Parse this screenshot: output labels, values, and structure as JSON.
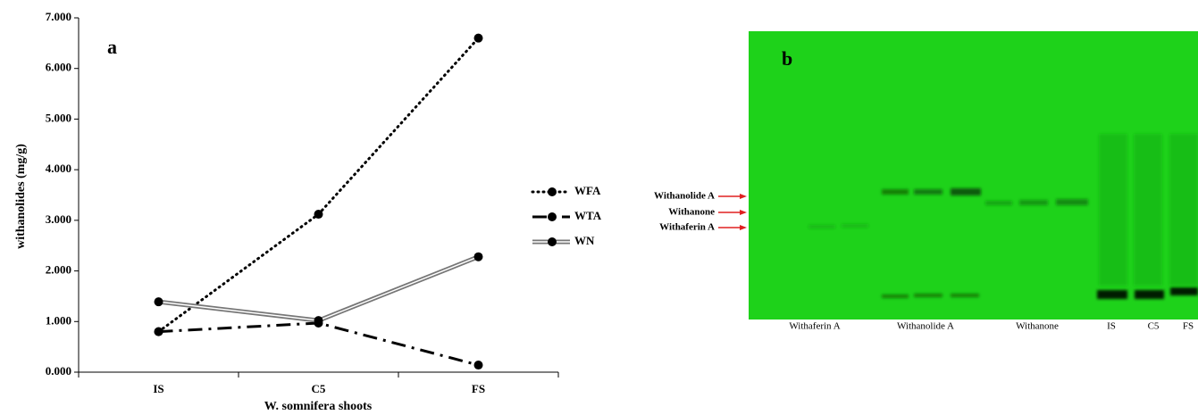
{
  "chart_data": [
    {
      "type": "line",
      "panel_label": "a",
      "y_label": "withanolides (mg/g)",
      "x_label": "W. somnifera shoots",
      "categories": [
        "IS",
        "C5",
        "FS"
      ],
      "series": [
        {
          "name": "WFA",
          "color": "#000000",
          "style": "dotted",
          "values": [
            0.8,
            3.12,
            6.6
          ]
        },
        {
          "name": "WTA",
          "color": "#000000",
          "style": "dashdot",
          "values": [
            0.8,
            0.97,
            0.14
          ]
        },
        {
          "name": "WN",
          "color": "#777777",
          "style": "double",
          "values": [
            1.39,
            1.02,
            2.28
          ]
        }
      ],
      "ylim": [
        0,
        7
      ],
      "yticks": [
        {
          "value": 0,
          "label": "0.000"
        },
        {
          "value": 1,
          "label": "1.000"
        },
        {
          "value": 2,
          "label": "2.000"
        },
        {
          "value": 3,
          "label": "3.000"
        },
        {
          "value": 4,
          "label": "4.000"
        },
        {
          "value": 5,
          "label": "5.000"
        },
        {
          "value": 6,
          "label": "6.000"
        },
        {
          "value": 7,
          "label": "7.000"
        }
      ],
      "grid": false,
      "legend": "right"
    }
  ],
  "plate": {
    "panel_label": "b",
    "markers": [
      "Withanolide A",
      "Withanone",
      "Withaferin A"
    ],
    "lanes": [
      "Withaferin A",
      "Withanolide A",
      "Withanone",
      "IS",
      "C5",
      "FS"
    ]
  }
}
